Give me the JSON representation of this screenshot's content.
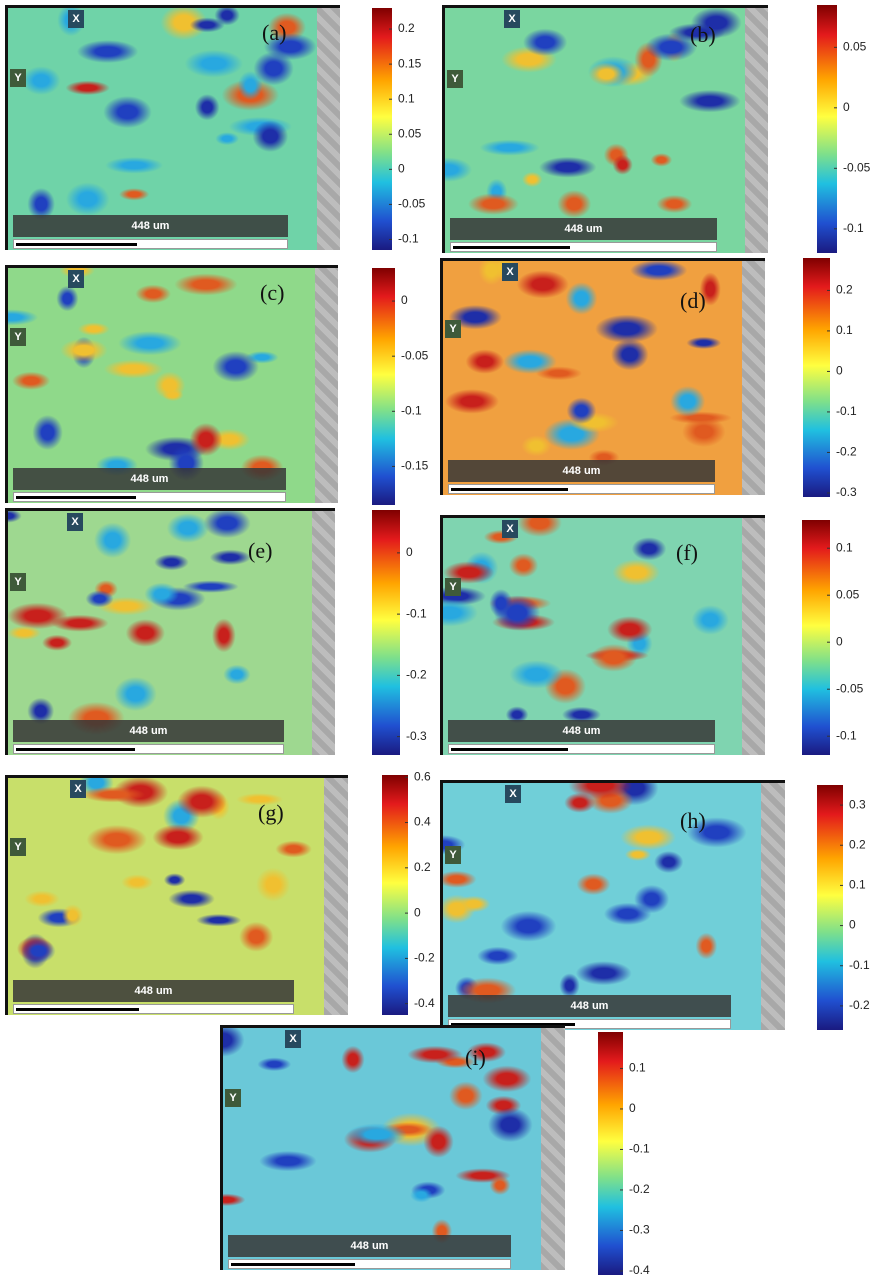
{
  "panels": [
    {
      "label": "(a)",
      "x_label": "X",
      "y_label": "Y",
      "scale": "448 um",
      "colorbar": {
        "lim": [
          -0.115,
          0.23
        ],
        "ticks": [
          0.2,
          0.15,
          0.1,
          0.05,
          0,
          -0.05,
          -0.1
        ]
      }
    },
    {
      "label": "(b)",
      "x_label": "X",
      "y_label": "Y",
      "scale": "448 um",
      "colorbar": {
        "lim": [
          -0.12,
          0.085
        ],
        "ticks": [
          0.05,
          0,
          -0.05,
          -0.1
        ]
      }
    },
    {
      "label": "(c)",
      "x_label": "X",
      "y_label": "Y",
      "scale": "448 um",
      "colorbar": {
        "lim": [
          -0.185,
          0.03
        ],
        "ticks": [
          0,
          -0.05,
          -0.1,
          -0.15
        ]
      }
    },
    {
      "label": "(d)",
      "x_label": "X",
      "y_label": "Y",
      "scale": "448 um",
      "colorbar": {
        "lim": [
          -0.31,
          0.28
        ],
        "ticks": [
          0.2,
          0.1,
          0,
          -0.1,
          -0.2,
          -0.3
        ]
      }
    },
    {
      "label": "(e)",
      "x_label": "X",
      "y_label": "Y",
      "scale": "448 um",
      "colorbar": {
        "lim": [
          -0.33,
          0.07
        ],
        "ticks": [
          0,
          -0.1,
          -0.2,
          -0.3
        ]
      }
    },
    {
      "label": "(f)",
      "x_label": "X",
      "y_label": "Y",
      "scale": "448 um",
      "colorbar": {
        "lim": [
          -0.12,
          0.13
        ],
        "ticks": [
          0.1,
          0.05,
          0,
          -0.05,
          -0.1
        ]
      }
    },
    {
      "label": "(g)",
      "x_label": "X",
      "y_label": "Y",
      "scale": "448 um",
      "colorbar": {
        "lim": [
          -0.45,
          0.61
        ],
        "ticks": [
          0.6,
          0.4,
          0.2,
          0,
          -0.2,
          -0.4
        ]
      }
    },
    {
      "label": "(h)",
      "x_label": "X",
      "y_label": "Y",
      "scale": "448 um",
      "colorbar": {
        "lim": [
          -0.26,
          0.35
        ],
        "ticks": [
          0.3,
          0.2,
          0.1,
          0,
          -0.1,
          -0.2
        ]
      }
    },
    {
      "label": "(i)",
      "x_label": "X",
      "y_label": "Y",
      "scale": "448 um",
      "colorbar": {
        "lim": [
          -0.41,
          0.19
        ],
        "ticks": [
          0.1,
          0,
          -0.1,
          -0.2,
          -0.3,
          -0.4
        ]
      }
    }
  ]
}
